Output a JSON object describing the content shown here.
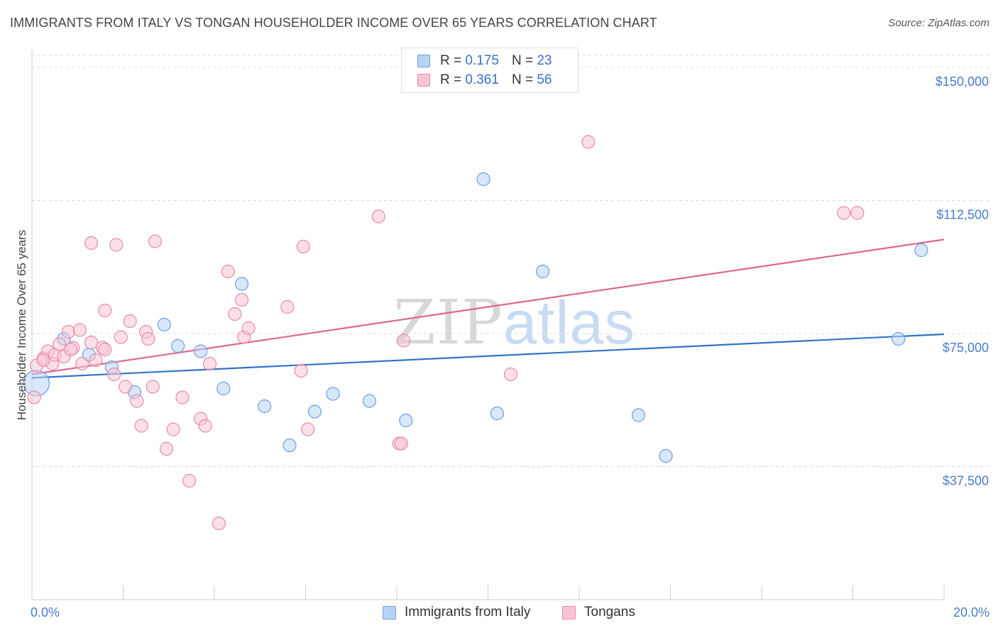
{
  "title": "IMMIGRANTS FROM ITALY VS TONGAN HOUSEHOLDER INCOME OVER 65 YEARS CORRELATION CHART",
  "source_label": "Source: ",
  "source_value": "ZipAtlas.com",
  "watermark": {
    "zip": "ZIP",
    "atlas": "atlas"
  },
  "colors": {
    "italy_fill": "#b8d3f5",
    "italy_stroke": "#6b9ee0",
    "italy_line": "#3373c7",
    "tongan_fill": "#f8c4d3",
    "tongan_stroke": "#e88aa7",
    "tongan_line": "#df6690",
    "tick_text": "#4a7cc9",
    "grid": "#d9d9d9"
  },
  "legend": {
    "rows": [
      {
        "series": "italy",
        "r_label": "R =",
        "r_value": "0.175",
        "n_label": "N =",
        "n_value": "23"
      },
      {
        "series": "tongan",
        "r_label": "R =",
        "r_value": "0.361",
        "n_label": "N =",
        "n_value": "56"
      }
    ]
  },
  "chart_data": {
    "type": "scatter",
    "title": "IMMIGRANTS FROM ITALY VS TONGAN HOUSEHOLDER INCOME OVER 65 YEARS CORRELATION CHART",
    "xlabel": "",
    "ylabel": "Householder Income Over 65 years",
    "xlim": [
      0,
      20
    ],
    "ylim": [
      0,
      155000
    ],
    "x_tick_labels": [
      "0.0%",
      "20.0%"
    ],
    "y_ticks": [
      37500,
      75000,
      112500,
      150000
    ],
    "y_tick_labels": [
      "$37,500",
      "$75,000",
      "$112,500",
      "$150,000"
    ],
    "grid": "horizontal dashed",
    "legend_position": "top-center and bottom",
    "series": [
      {
        "name": "Immigrants from Italy",
        "key": "italy",
        "trend": [
          [
            0,
            62500
          ],
          [
            20,
            74800
          ]
        ],
        "points": [
          [
            0.1,
            61000,
            "large"
          ],
          [
            0.7,
            73500
          ],
          [
            1.25,
            69000
          ],
          [
            1.75,
            65500
          ],
          [
            2.25,
            58500
          ],
          [
            2.9,
            77500
          ],
          [
            3.2,
            71500
          ],
          [
            3.7,
            70000
          ],
          [
            4.2,
            59500
          ],
          [
            4.6,
            89000
          ],
          [
            5.1,
            54500
          ],
          [
            5.65,
            43500
          ],
          [
            6.2,
            53000
          ],
          [
            6.6,
            58000
          ],
          [
            7.4,
            56000
          ],
          [
            8.2,
            50500
          ],
          [
            9.9,
            118500
          ],
          [
            10.2,
            52500
          ],
          [
            11.2,
            92500
          ],
          [
            13.3,
            52000
          ],
          [
            13.9,
            40500
          ],
          [
            19.0,
            73500
          ],
          [
            19.5,
            98500
          ]
        ]
      },
      {
        "name": "Tongans",
        "key": "tongan",
        "trend": [
          [
            0,
            63500
          ],
          [
            20,
            101500
          ]
        ],
        "points": [
          [
            0.05,
            57000
          ],
          [
            0.1,
            66000
          ],
          [
            0.25,
            68000
          ],
          [
            0.35,
            70000
          ],
          [
            0.45,
            66500
          ],
          [
            0.5,
            69000
          ],
          [
            0.6,
            72000
          ],
          [
            0.7,
            68500
          ],
          [
            0.8,
            75500
          ],
          [
            0.9,
            71000
          ],
          [
            1.05,
            76000
          ],
          [
            1.1,
            66500
          ],
          [
            1.3,
            72500
          ],
          [
            1.4,
            67500
          ],
          [
            1.3,
            100500
          ],
          [
            1.55,
            71000
          ],
          [
            1.6,
            70500
          ],
          [
            1.6,
            81500
          ],
          [
            1.8,
            63500
          ],
          [
            1.85,
            100000
          ],
          [
            1.95,
            74000
          ],
          [
            2.05,
            60000
          ],
          [
            2.15,
            78500
          ],
          [
            2.3,
            56000
          ],
          [
            2.4,
            49000
          ],
          [
            2.5,
            75500
          ],
          [
            2.55,
            73500
          ],
          [
            2.65,
            60000
          ],
          [
            2.7,
            101000
          ],
          [
            2.95,
            42500
          ],
          [
            3.1,
            48000
          ],
          [
            3.3,
            57000
          ],
          [
            3.45,
            33500
          ],
          [
            3.7,
            51000
          ],
          [
            3.8,
            49000
          ],
          [
            3.9,
            66500
          ],
          [
            4.1,
            21500
          ],
          [
            4.3,
            92500
          ],
          [
            4.45,
            80500
          ],
          [
            4.6,
            84500
          ],
          [
            4.65,
            74000
          ],
          [
            4.75,
            76500
          ],
          [
            5.6,
            82500
          ],
          [
            5.9,
            64500
          ],
          [
            5.95,
            99500
          ],
          [
            6.05,
            48000
          ],
          [
            7.6,
            108000
          ],
          [
            8.05,
            44000
          ],
          [
            8.1,
            44000
          ],
          [
            8.15,
            73000
          ],
          [
            10.5,
            63500
          ],
          [
            12.2,
            129000
          ],
          [
            17.8,
            109000
          ],
          [
            18.1,
            109000
          ],
          [
            0.25,
            67500
          ],
          [
            0.85,
            70500
          ]
        ]
      }
    ]
  },
  "bottom_legend": [
    {
      "series": "italy",
      "label": "Immigrants from Italy"
    },
    {
      "series": "tongan",
      "label": "Tongans"
    }
  ]
}
